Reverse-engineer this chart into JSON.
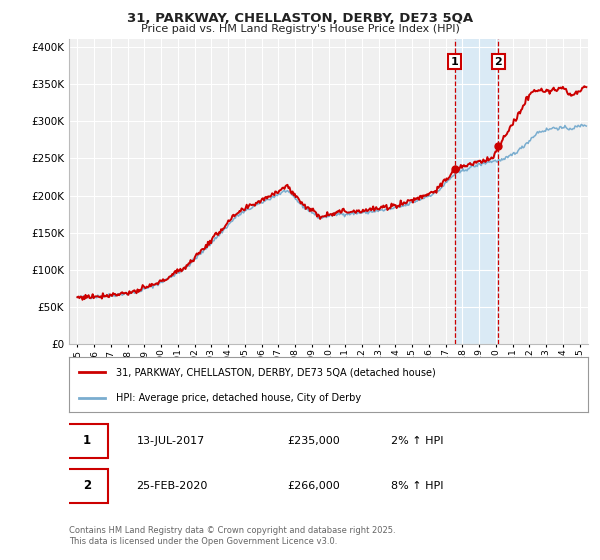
{
  "title": "31, PARKWAY, CHELLASTON, DERBY, DE73 5QA",
  "subtitle": "Price paid vs. HM Land Registry's House Price Index (HPI)",
  "legend_line1": "31, PARKWAY, CHELLASTON, DERBY, DE73 5QA (detached house)",
  "legend_line2": "HPI: Average price, detached house, City of Derby",
  "annotation1_label": "1",
  "annotation1_date": "13-JUL-2017",
  "annotation1_price": "£235,000",
  "annotation1_hpi": "2% ↑ HPI",
  "annotation2_label": "2",
  "annotation2_date": "25-FEB-2020",
  "annotation2_price": "£266,000",
  "annotation2_hpi": "8% ↑ HPI",
  "footnote": "Contains HM Land Registry data © Crown copyright and database right 2025.\nThis data is licensed under the Open Government Licence v3.0.",
  "ylim_min": 0,
  "ylim_max": 410000,
  "yticks": [
    0,
    50000,
    100000,
    150000,
    200000,
    250000,
    300000,
    350000,
    400000
  ],
  "xlim_min": 1994.5,
  "xlim_max": 2025.5,
  "red_color": "#cc0000",
  "blue_color": "#7aadcf",
  "shading_color": "#daeaf5",
  "dot_color": "#cc0000",
  "vline_color": "#cc0000",
  "background_color": "#ffffff",
  "chart_bg_color": "#f0f0f0",
  "grid_color": "#ffffff",
  "annotation_box_color": "#cc0000",
  "sale1_year": 2017.528,
  "sale2_year": 2020.153,
  "sale1_price": 235000,
  "sale2_price": 266000
}
